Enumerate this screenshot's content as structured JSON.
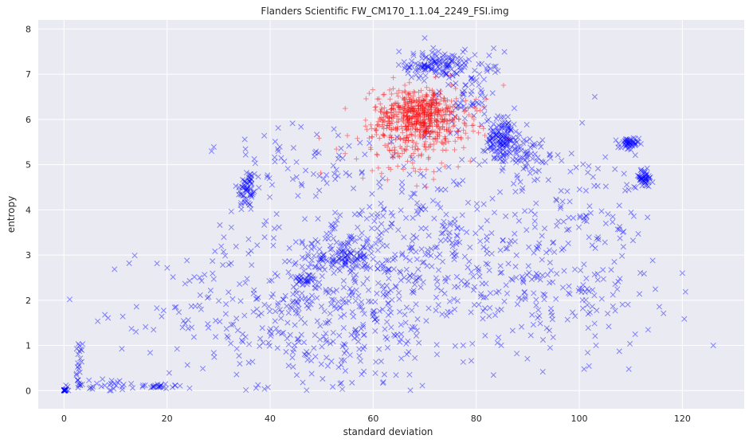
{
  "chart_data": {
    "type": "scatter",
    "title": "Flanders Scientific FW_CM170_1.1.04_2249_FSI.img",
    "xlabel": "standard deviation",
    "ylabel": "entropy",
    "xlim": [
      -5,
      132
    ],
    "ylim": [
      -0.4,
      8.2
    ],
    "xticks": [
      "0",
      "20",
      "40",
      "60",
      "80",
      "100",
      "120"
    ],
    "yticks": [
      "0",
      "1",
      "2",
      "3",
      "4",
      "5",
      "6",
      "7",
      "8"
    ],
    "grid": true,
    "background": "#eaeaf2",
    "series": [
      {
        "marker": "x",
        "color": "#0000ff",
        "clusters": [
          {
            "cx": 0,
            "cy": 0,
            "sx": 0.3,
            "sy": 0.02,
            "n": 25
          },
          {
            "cx": 3,
            "cy": 0.6,
            "sx": 0.4,
            "sy": 0.3,
            "n": 20
          },
          {
            "cx": 8,
            "cy": 0.12,
            "sx": 4,
            "sy": 0.08,
            "n": 30
          },
          {
            "cx": 18,
            "cy": 0.1,
            "sx": 2.5,
            "sy": 0.03,
            "n": 25
          },
          {
            "cx": 35.5,
            "cy": 4.45,
            "sx": 1,
            "sy": 0.25,
            "n": 60
          },
          {
            "cx": 47,
            "cy": 2.45,
            "sx": 1.2,
            "sy": 0.07,
            "n": 30
          },
          {
            "cx": 54,
            "cy": 2.95,
            "sx": 2.5,
            "sy": 0.18,
            "n": 80
          },
          {
            "cx": 72,
            "cy": 7.2,
            "sx": 2.8,
            "sy": 0.15,
            "n": 120
          },
          {
            "cx": 79,
            "cy": 6.7,
            "sx": 3,
            "sy": 0.4,
            "n": 80
          },
          {
            "cx": 85,
            "cy": 5.55,
            "sx": 1.6,
            "sy": 0.25,
            "n": 140
          },
          {
            "cx": 90,
            "cy": 5.25,
            "sx": 2,
            "sy": 0.2,
            "n": 50
          },
          {
            "cx": 109.5,
            "cy": 5.45,
            "sx": 1,
            "sy": 0.08,
            "n": 50
          },
          {
            "cx": 112.5,
            "cy": 4.7,
            "sx": 0.9,
            "sy": 0.1,
            "n": 50
          },
          {
            "cx": 48,
            "cy": 1.8,
            "sx": 15,
            "sy": 0.9,
            "n": 450
          },
          {
            "cx": 68,
            "cy": 3.3,
            "sx": 12,
            "sy": 1.0,
            "n": 350
          },
          {
            "cx": 95,
            "cy": 2.2,
            "sx": 10,
            "sy": 0.7,
            "n": 180
          },
          {
            "cx": 100,
            "cy": 4.2,
            "sx": 6,
            "sy": 0.6,
            "n": 80
          },
          {
            "cx": 45,
            "cy": 5.0,
            "sx": 8,
            "sy": 0.6,
            "n": 60
          }
        ],
        "points": [
          [
            126,
            1.0
          ],
          [
            120,
            2.6
          ],
          [
            103,
            6.5
          ],
          [
            70,
            7.8
          ],
          [
            65,
            7.5
          ]
        ]
      },
      {
        "marker": "+",
        "color": "#ff0000",
        "clusters": [
          {
            "cx": 69,
            "cy": 6.1,
            "sx": 4.5,
            "sy": 0.3,
            "n": 550
          },
          {
            "cx": 68,
            "cy": 5.5,
            "sx": 6,
            "sy": 0.4,
            "n": 150
          }
        ],
        "points": [
          [
            76.5,
            4.95
          ],
          [
            58,
            4.7
          ]
        ]
      }
    ]
  }
}
